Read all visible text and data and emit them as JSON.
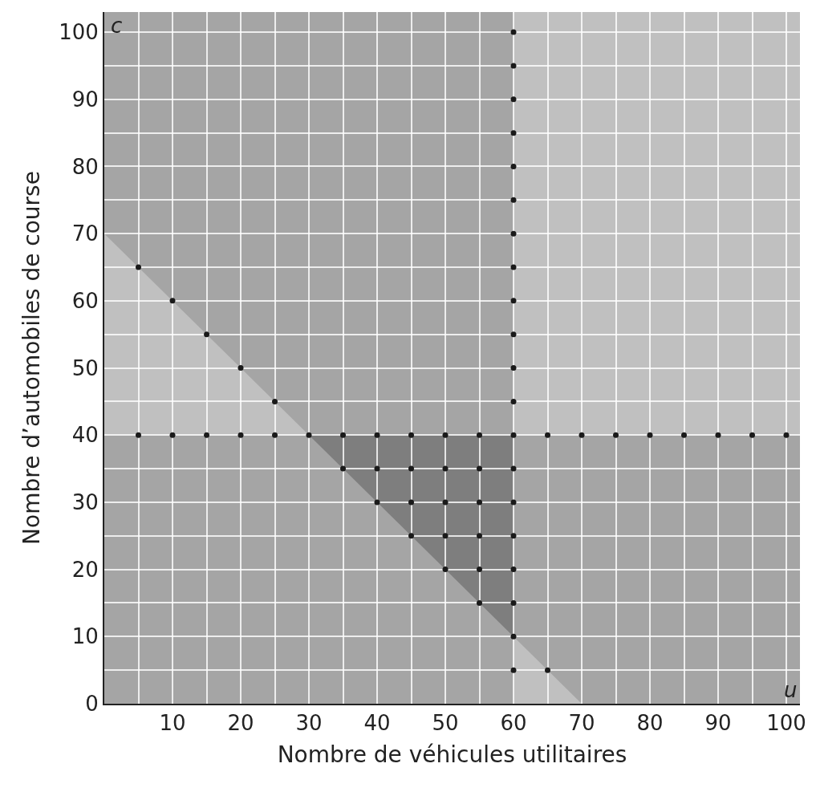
{
  "chart_data": {
    "type": "scatter",
    "xlabel": "Nombre de véhicules utilitaires",
    "ylabel": "Nombre d’automobiles de course",
    "annotations": [
      "c",
      "u"
    ],
    "xlim": [
      0,
      102
    ],
    "ylim": [
      0,
      103
    ],
    "xticks": [
      {
        "value": 0,
        "label": null
      },
      {
        "value": 5,
        "label": null
      },
      10,
      {
        "value": 15,
        "label": null
      },
      20,
      {
        "value": 25,
        "label": null
      },
      30,
      {
        "value": 35,
        "label": null
      },
      40,
      {
        "value": 45,
        "label": null
      },
      50,
      {
        "value": 55,
        "label": null
      },
      60,
      {
        "value": 65,
        "label": null
      },
      70,
      {
        "value": 75,
        "label": null
      },
      80,
      {
        "value": 85,
        "label": null
      },
      90,
      {
        "value": 95,
        "label": null
      },
      100
    ],
    "yticks": [
      0,
      {
        "value": 5,
        "label": null
      },
      10,
      {
        "value": 15,
        "label": null
      },
      20,
      {
        "value": 25,
        "label": null
      },
      30,
      {
        "value": 35,
        "label": null
      },
      40,
      {
        "value": 45,
        "label": null
      },
      50,
      {
        "value": 55,
        "label": null
      },
      60,
      {
        "value": 65,
        "label": null
      },
      70,
      {
        "value": 75,
        "label": null
      },
      80,
      {
        "value": 85,
        "label": null
      },
      90,
      {
        "value": 95,
        "label": null
      },
      100
    ],
    "grid": true,
    "bands": [
      {
        "axis": "y",
        "from": 40,
        "to": 103,
        "color": "#ffffff"
      },
      {
        "axis": "x",
        "from": 60,
        "to": 102,
        "color": "#ffffff"
      }
    ],
    "series": [
      {
        "type": "area",
        "color": "#ffffff",
        "x": [
          0,
          70
        ],
        "values": [
          70,
          0
        ]
      },
      {
        "color": "#1a1a1a",
        "marker": "circle",
        "x": [
          5,
          10,
          15,
          20,
          25,
          30,
          35,
          40,
          45,
          50,
          55,
          60,
          65,
          70,
          75,
          80,
          85,
          90,
          95,
          100,
          60,
          60,
          60,
          60,
          60,
          60,
          60,
          60,
          60,
          60,
          60,
          60,
          60,
          60,
          60,
          60,
          60,
          60,
          60,
          5,
          10,
          15,
          20,
          25,
          35,
          40,
          45,
          50,
          55,
          65,
          40,
          45,
          50,
          55,
          45,
          50,
          55,
          50,
          55,
          55
        ],
        "values": [
          40,
          40,
          40,
          40,
          40,
          40,
          40,
          40,
          40,
          40,
          40,
          40,
          40,
          40,
          40,
          40,
          40,
          40,
          40,
          40,
          5,
          10,
          15,
          20,
          25,
          30,
          35,
          45,
          50,
          55,
          60,
          65,
          70,
          75,
          80,
          85,
          90,
          95,
          100,
          65,
          60,
          55,
          50,
          45,
          35,
          30,
          25,
          20,
          15,
          5,
          35,
          35,
          35,
          35,
          30,
          30,
          30,
          25,
          25,
          20
        ]
      }
    ]
  }
}
